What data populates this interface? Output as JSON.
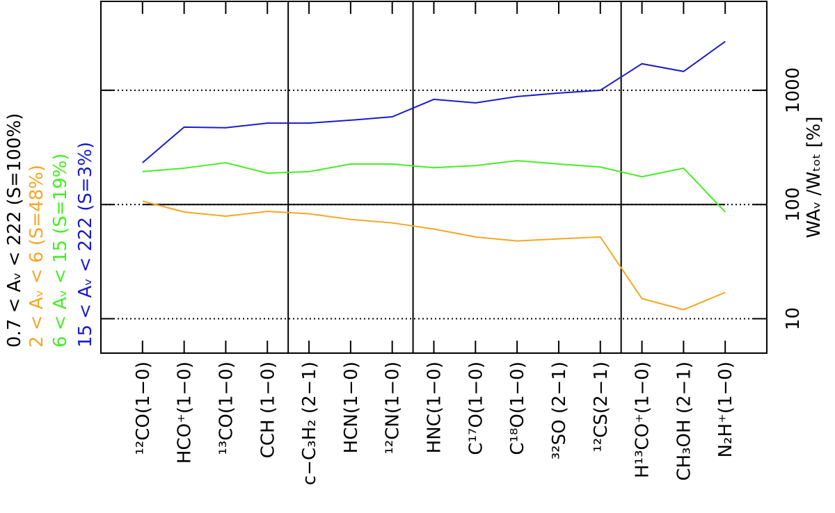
{
  "chart_data": {
    "type": "line",
    "y_label": "WAᵥ /Wₜₒₜ [%]",
    "categories": [
      "¹²CO(1−0)",
      "HCO⁺(1−0)",
      "¹³CO(1−0)",
      "CCH (1−0)",
      "c−C₃H₂ (2−1)",
      "HCN(1−0)",
      "¹²CN(1−0)",
      "HNC(1−0)",
      "C¹⁷O(1−0)",
      "C¹⁸O(1−0)",
      "³²SO (2−1)",
      "¹²CS(2−1)",
      "H¹³CO⁺(1−0)",
      "CH₃OH (2−1)",
      "N₂H⁺(1−0)"
    ],
    "series": [
      {
        "name": "0.7 < Aᵥ < 222 (S=100%)",
        "color": "#000000",
        "values": [
          100,
          100,
          100,
          100,
          100,
          100,
          100,
          100,
          100,
          100,
          100,
          100,
          100,
          100,
          100
        ]
      },
      {
        "name": "2 < Aᵥ < 6 (S=48%)",
        "color": "#f5a623",
        "values": [
          107,
          86,
          79,
          87,
          83,
          74,
          69,
          61,
          52,
          48,
          50,
          52,
          15,
          12,
          17
        ]
      },
      {
        "name": "6 < Aᵥ < 15 (S=19%)",
        "color": "#44ee22",
        "values": [
          194,
          208,
          232,
          188,
          194,
          226,
          226,
          210,
          219,
          242,
          226,
          213,
          175,
          208,
          86
        ]
      },
      {
        "name": "15 < Aᵥ < 222 (S=3%)",
        "color": "#1a1acc",
        "values": [
          232,
          476,
          470,
          516,
          516,
          547,
          586,
          833,
          776,
          881,
          946,
          1000,
          1707,
          1462,
          2672
        ]
      }
    ],
    "ylim": [
      5,
      6000
    ],
    "yticks": [
      10,
      100,
      1000
    ],
    "log_y": true,
    "grid": true
  }
}
